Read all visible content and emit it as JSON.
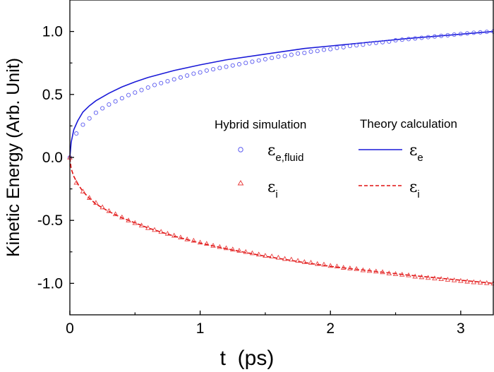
{
  "chart_data": {
    "type": "line",
    "xlabel": "t  (ps)",
    "ylabel": "Kinetic Energy (Arb. Unit)",
    "xlim": [
      0,
      3.25
    ],
    "ylim": [
      -1.25,
      1.25
    ],
    "x_ticks": [
      0,
      1,
      2,
      3
    ],
    "x_tick_labels": [
      "0",
      "1",
      "2",
      "3"
    ],
    "y_ticks": [
      -1.0,
      -0.5,
      0.0,
      0.5,
      1.0
    ],
    "y_tick_labels": [
      "-1.0",
      "-0.5",
      "0.0",
      "0.5",
      "1.0"
    ],
    "grid": false,
    "legend_position": "center-right",
    "legend_groups": [
      {
        "title": "Hybrid simulation",
        "entries": [
          {
            "symbol": "ε",
            "subscript": "e,fluid",
            "marker": "circle",
            "color": "#5a5af0"
          },
          {
            "symbol": "ε",
            "subscript": "i",
            "marker": "triangle",
            "color": "#e84040"
          }
        ]
      },
      {
        "title": "Theory calculation",
        "entries": [
          {
            "symbol": "ε",
            "subscript": "e",
            "line": "solid",
            "color": "#1a1ad8"
          },
          {
            "symbol": "ε",
            "subscript": "i",
            "line": "dashed",
            "color": "#e01010"
          }
        ]
      }
    ],
    "series": [
      {
        "kind": "line",
        "style": "solid",
        "color": "#1a1ad8",
        "x": [
          0,
          0.01,
          0.03,
          0.06,
          0.1,
          0.15,
          0.2,
          0.3,
          0.4,
          0.5,
          0.6,
          0.8,
          1.0,
          1.2,
          1.5,
          1.8,
          2.0,
          2.3,
          2.6,
          2.9,
          3.25
        ],
        "y": [
          0,
          0.12,
          0.22,
          0.29,
          0.36,
          0.41,
          0.45,
          0.51,
          0.56,
          0.6,
          0.635,
          0.69,
          0.735,
          0.775,
          0.82,
          0.865,
          0.885,
          0.915,
          0.945,
          0.97,
          1.0
        ]
      },
      {
        "kind": "line",
        "style": "dashed",
        "color": "#e01010",
        "x": [
          0,
          0.01,
          0.03,
          0.06,
          0.1,
          0.15,
          0.2,
          0.3,
          0.4,
          0.5,
          0.6,
          0.8,
          1.0,
          1.2,
          1.5,
          1.8,
          2.0,
          2.3,
          2.6,
          2.9,
          3.25
        ],
        "y": [
          0,
          -0.09,
          -0.15,
          -0.21,
          -0.27,
          -0.325,
          -0.37,
          -0.43,
          -0.48,
          -0.52,
          -0.56,
          -0.625,
          -0.68,
          -0.725,
          -0.785,
          -0.835,
          -0.865,
          -0.9,
          -0.935,
          -0.965,
          -1.0
        ]
      },
      {
        "kind": "scatter",
        "marker": "circle",
        "color": "#5a5af0",
        "x": [
          0,
          0.05,
          0.1,
          0.15,
          0.2,
          0.25,
          0.3,
          0.35,
          0.4,
          0.45,
          0.5,
          0.55,
          0.6,
          0.65,
          0.7,
          0.75,
          0.8,
          0.85,
          0.9,
          0.95,
          1.0,
          1.05,
          1.1,
          1.15,
          1.2,
          1.25,
          1.3,
          1.35,
          1.4,
          1.45,
          1.5,
          1.55,
          1.6,
          1.65,
          1.7,
          1.75,
          1.8,
          1.85,
          1.9,
          1.95,
          2.0,
          2.05,
          2.1,
          2.15,
          2.2,
          2.25,
          2.3,
          2.35,
          2.4,
          2.45,
          2.5,
          2.55,
          2.6,
          2.65,
          2.7,
          2.75,
          2.8,
          2.85,
          2.9,
          2.95,
          3.0,
          3.05,
          3.1,
          3.15,
          3.2,
          3.25
        ],
        "y": [
          0,
          0.19,
          0.26,
          0.31,
          0.355,
          0.39,
          0.42,
          0.445,
          0.47,
          0.495,
          0.515,
          0.535,
          0.555,
          0.575,
          0.59,
          0.605,
          0.62,
          0.635,
          0.65,
          0.665,
          0.675,
          0.69,
          0.7,
          0.71,
          0.72,
          0.73,
          0.74,
          0.75,
          0.76,
          0.77,
          0.78,
          0.79,
          0.8,
          0.805,
          0.815,
          0.825,
          0.83,
          0.84,
          0.845,
          0.855,
          0.86,
          0.87,
          0.875,
          0.885,
          0.89,
          0.895,
          0.905,
          0.91,
          0.915,
          0.92,
          0.93,
          0.935,
          0.94,
          0.945,
          0.95,
          0.955,
          0.96,
          0.965,
          0.97,
          0.975,
          0.98,
          0.985,
          0.99,
          0.993,
          0.997,
          1.0
        ]
      },
      {
        "kind": "scatter",
        "marker": "triangle",
        "color": "#e84040",
        "x": [
          0,
          0.05,
          0.1,
          0.15,
          0.2,
          0.25,
          0.3,
          0.35,
          0.4,
          0.45,
          0.5,
          0.55,
          0.6,
          0.65,
          0.7,
          0.75,
          0.8,
          0.85,
          0.9,
          0.95,
          1.0,
          1.05,
          1.1,
          1.15,
          1.2,
          1.25,
          1.3,
          1.35,
          1.4,
          1.45,
          1.5,
          1.55,
          1.6,
          1.65,
          1.7,
          1.75,
          1.8,
          1.85,
          1.9,
          1.95,
          2.0,
          2.05,
          2.1,
          2.15,
          2.2,
          2.25,
          2.3,
          2.35,
          2.4,
          2.45,
          2.5,
          2.55,
          2.6,
          2.65,
          2.7,
          2.75,
          2.8,
          2.85,
          2.9,
          2.95,
          3.0,
          3.05,
          3.1,
          3.15,
          3.2,
          3.25
        ],
        "y": [
          0,
          -0.2,
          -0.27,
          -0.32,
          -0.36,
          -0.395,
          -0.425,
          -0.45,
          -0.475,
          -0.5,
          -0.52,
          -0.54,
          -0.56,
          -0.575,
          -0.59,
          -0.605,
          -0.62,
          -0.635,
          -0.65,
          -0.66,
          -0.675,
          -0.685,
          -0.7,
          -0.71,
          -0.72,
          -0.73,
          -0.74,
          -0.75,
          -0.76,
          -0.77,
          -0.78,
          -0.785,
          -0.795,
          -0.805,
          -0.81,
          -0.82,
          -0.83,
          -0.835,
          -0.845,
          -0.85,
          -0.86,
          -0.865,
          -0.875,
          -0.88,
          -0.885,
          -0.895,
          -0.9,
          -0.905,
          -0.91,
          -0.92,
          -0.925,
          -0.93,
          -0.935,
          -0.945,
          -0.95,
          -0.955,
          -0.96,
          -0.965,
          -0.97,
          -0.975,
          -0.98,
          -0.985,
          -0.99,
          -0.993,
          -0.997,
          -1.0
        ]
      }
    ]
  }
}
